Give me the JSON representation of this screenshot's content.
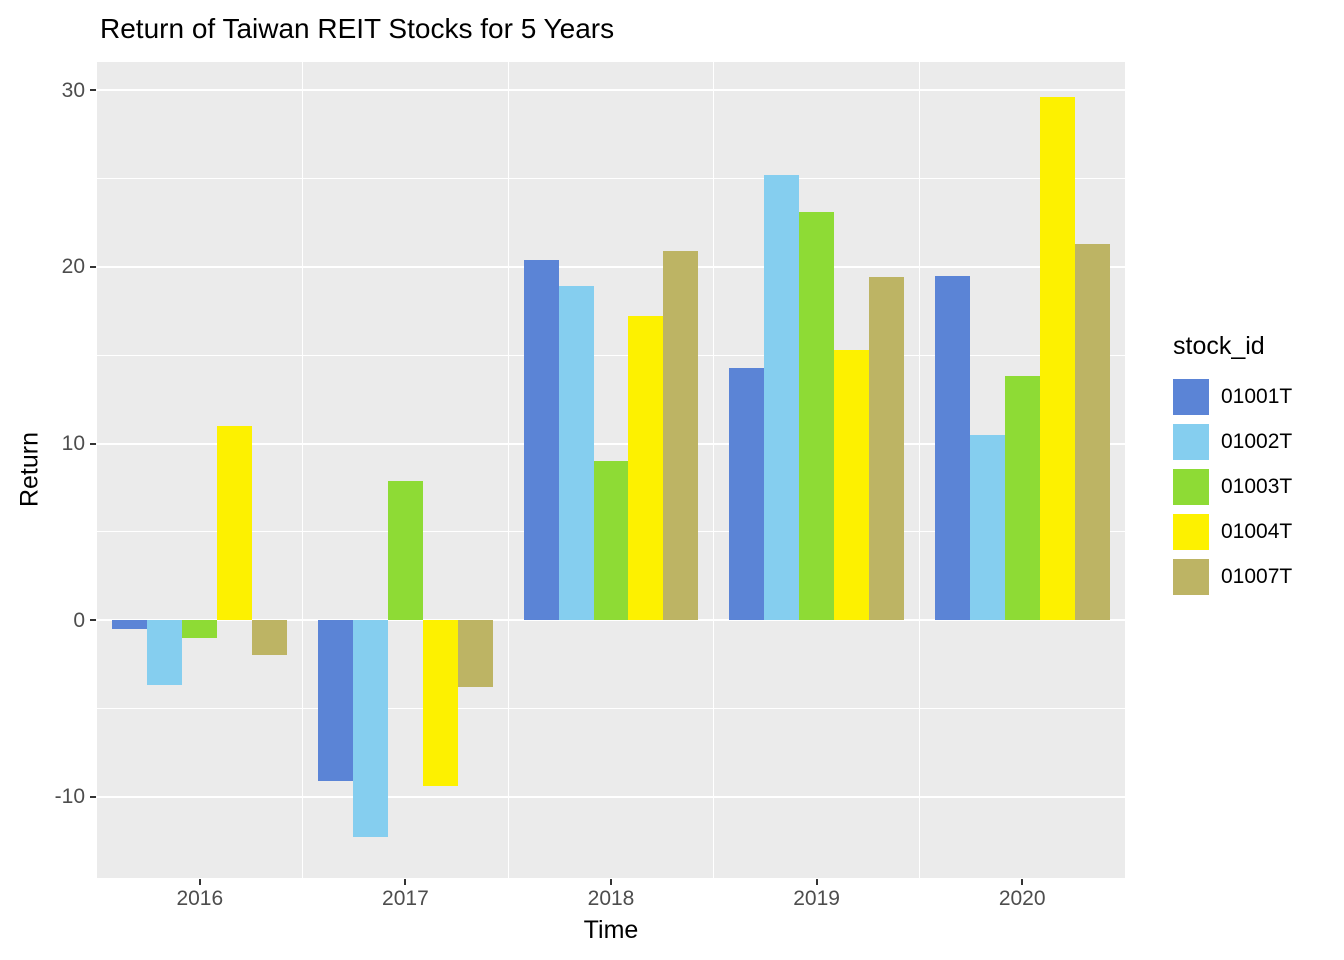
{
  "chart_data": {
    "type": "bar",
    "title": "Return of Taiwan REIT Stocks for 5 Years",
    "xlabel": "Time",
    "ylabel": "Return",
    "legend_title": "stock_id",
    "legend_position": "right",
    "grid": true,
    "categories": [
      "2016",
      "2017",
      "2018",
      "2019",
      "2020"
    ],
    "series": [
      {
        "name": "01001T",
        "color": "#5B84D6",
        "values": [
          -0.5,
          -9.1,
          20.4,
          14.3,
          19.5
        ]
      },
      {
        "name": "01002T",
        "color": "#85CEEF",
        "values": [
          -3.7,
          -12.3,
          18.9,
          25.2,
          10.5
        ]
      },
      {
        "name": "01003T",
        "color": "#8EDB35",
        "values": [
          -1.0,
          7.9,
          9.0,
          23.1,
          13.8
        ]
      },
      {
        "name": "01004T",
        "color": "#FDF100",
        "values": [
          11.0,
          -9.4,
          17.2,
          15.3,
          29.6
        ]
      },
      {
        "name": "01007T",
        "color": "#BDB464",
        "values": [
          -2.0,
          -3.8,
          20.9,
          19.4,
          21.3
        ]
      }
    ],
    "ylim": [
      -14.6,
      31.6
    ],
    "yticks": [
      -10,
      0,
      10,
      20,
      30
    ],
    "yticks_minor": [
      -5,
      5,
      15,
      25
    ],
    "panel_bg": "#EBEBEB",
    "grid_color": "#FFFFFF",
    "tick_color": "#333333",
    "tick_label_color": "#4D4D4D"
  }
}
